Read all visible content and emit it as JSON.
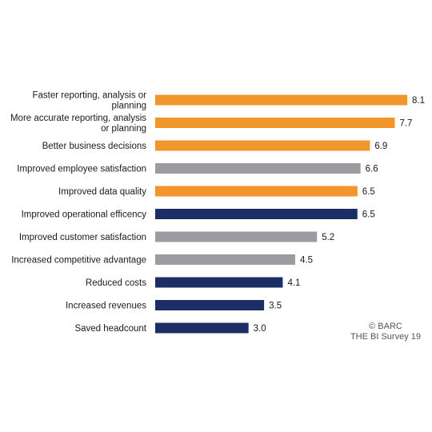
{
  "chart_data": {
    "type": "bar",
    "orientation": "horizontal",
    "categories": [
      [
        "Faster reporting, analysis or",
        "planning"
      ],
      [
        "More accurate reporting, analysis",
        "or planning"
      ],
      [
        "Better business decisions"
      ],
      [
        "Improved employee satisfaction"
      ],
      [
        "Improved data quality"
      ],
      [
        "Improved operational efficency"
      ],
      [
        "Improved customer satisfaction"
      ],
      [
        "Increased competitive advantage"
      ],
      [
        "Reduced costs"
      ],
      [
        "Increased revenues"
      ],
      [
        "Saved headcount"
      ]
    ],
    "values": [
      8.1,
      7.7,
      6.9,
      6.6,
      6.5,
      6.5,
      5.2,
      4.5,
      4.1,
      3.5,
      3.0
    ],
    "value_labels": [
      "8.1",
      "7.7",
      "6.9",
      "6.6",
      "6.5",
      "6.5",
      "5.2",
      "4.5",
      "4.1",
      "3.5",
      "3.0"
    ],
    "bar_colors": [
      "#f0962b",
      "#f0962b",
      "#f0962b",
      "#9a9ca0",
      "#f0962b",
      "#1b2f66",
      "#9a9ca0",
      "#9a9ca0",
      "#1b2f66",
      "#1b2f66",
      "#1b2f66"
    ],
    "xlim": [
      0,
      8.1
    ],
    "grid": false,
    "legend": "none",
    "title": "",
    "xlabel": "",
    "ylabel": ""
  },
  "credit": {
    "line1": "© BARC",
    "line2": "THE BI Survey 19"
  }
}
